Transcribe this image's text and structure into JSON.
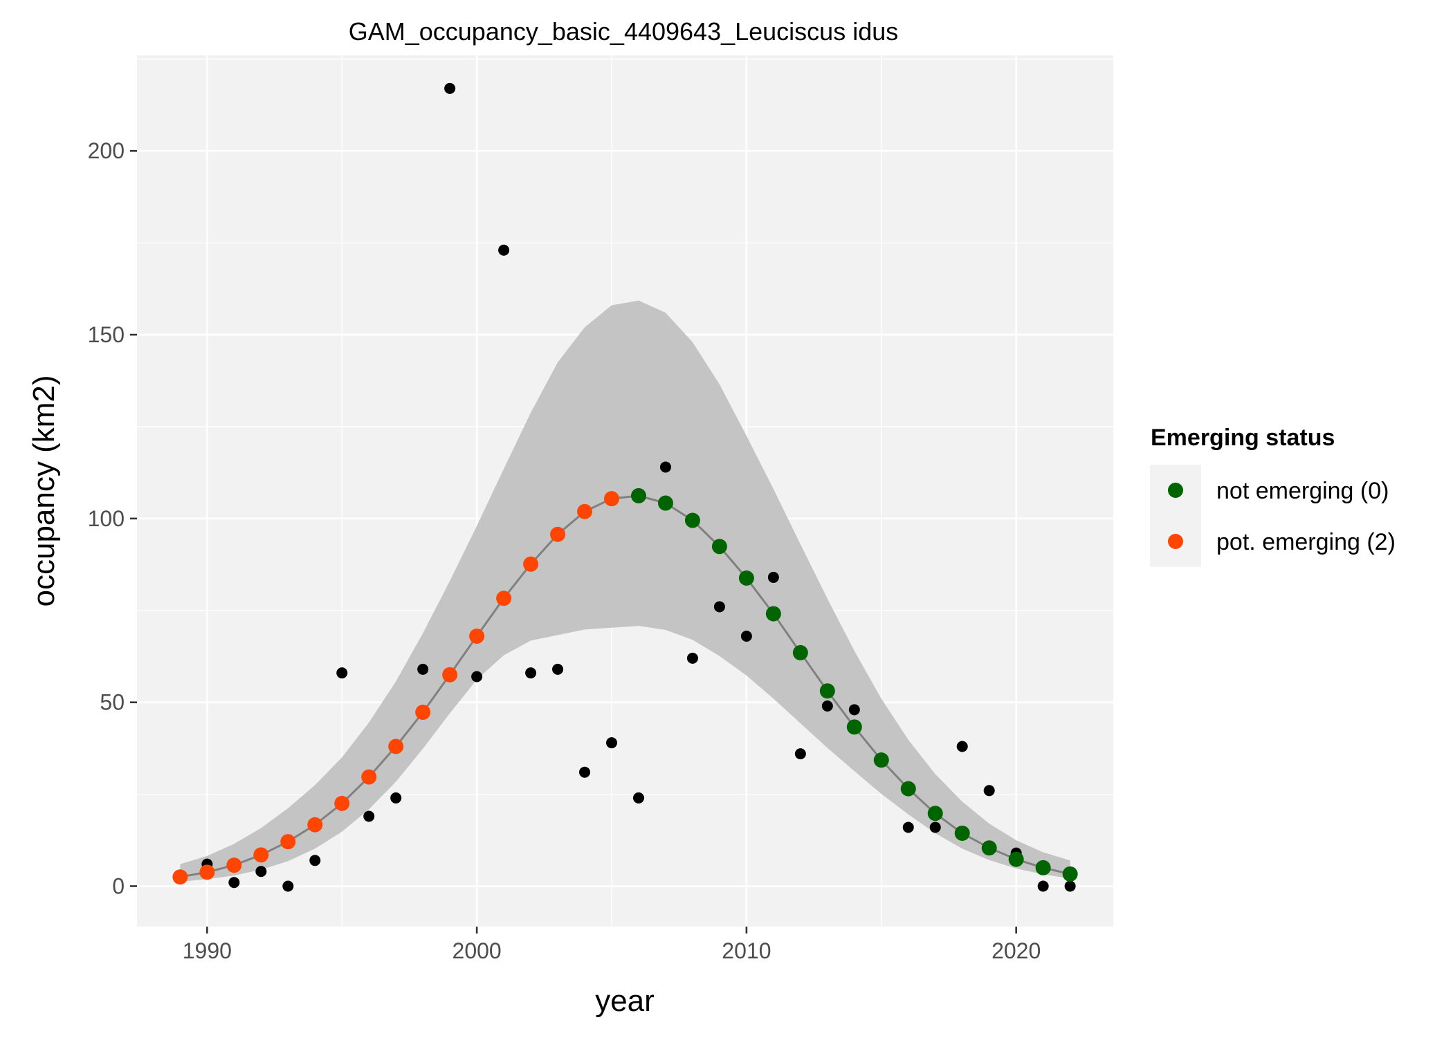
{
  "chart_data": {
    "type": "scatter",
    "title": "GAM_occupancy_basic_4409643_Leuciscus idus",
    "xlabel": "year",
    "ylabel": "occupancy (km2)",
    "xlim": [
      1987.4,
      2023.6
    ],
    "ylim": [
      -11,
      226
    ],
    "x_ticks": [
      1990,
      2000,
      2010,
      2020
    ],
    "y_ticks": [
      0,
      50,
      100,
      150,
      200
    ],
    "grid": true,
    "legend": {
      "title": "Emerging status",
      "position": "right",
      "entries": [
        {
          "label": "not emerging (0)",
          "color": "#006400"
        },
        {
          "label": "pot. emerging (2)",
          "color": "#ff4500"
        }
      ]
    },
    "colors": {
      "panel_background": "#f2f2f2",
      "grid": "#ffffff",
      "observed": "#000000",
      "fit_line": "#808080",
      "ribbon": "#c4c4c4"
    },
    "observed": {
      "x": [
        1990,
        1991,
        1992,
        1993,
        1994,
        1995,
        1996,
        1997,
        1998,
        1999,
        2000,
        2001,
        2002,
        2003,
        2004,
        2005,
        2006,
        2007,
        2008,
        2009,
        2010,
        2011,
        2012,
        2013,
        2014,
        2016,
        2017,
        2018,
        2019,
        2020,
        2021,
        2022
      ],
      "y": [
        6,
        1,
        4,
        0,
        7,
        58,
        19,
        24,
        59,
        217,
        57,
        173,
        58,
        59,
        31,
        39,
        24,
        114,
        62,
        76,
        68,
        84,
        36,
        49,
        48,
        16,
        16,
        38,
        26,
        9,
        0,
        0
      ]
    },
    "fitted": {
      "x": [
        1989,
        1990,
        1991,
        1992,
        1993,
        1994,
        1995,
        1996,
        1997,
        1998,
        1999,
        2000,
        2001,
        2002,
        2003,
        2004,
        2005,
        2006,
        2007,
        2008,
        2009,
        2010,
        2011,
        2012,
        2013,
        2014,
        2015,
        2016,
        2017,
        2018,
        2019,
        2020,
        2021,
        2022
      ],
      "y": [
        2.5,
        3.8,
        5.7,
        8.5,
        12.1,
        16.7,
        22.5,
        29.7,
        38.0,
        47.3,
        57.5,
        68.0,
        78.3,
        87.6,
        95.7,
        101.9,
        105.4,
        106.2,
        104.2,
        99.5,
        92.4,
        83.8,
        74.1,
        63.5,
        53.1,
        43.3,
        34.3,
        26.5,
        19.8,
        14.4,
        10.4,
        7.3,
        5.0,
        3.3
      ],
      "lower": [
        1.2,
        1.9,
        2.9,
        4.5,
        6.8,
        10.2,
        14.8,
        20.9,
        28.4,
        37.4,
        47.0,
        56.2,
        62.8,
        66.8,
        68.3,
        69.8,
        70.3,
        70.8,
        69.7,
        67.0,
        62.6,
        57.3,
        51.0,
        44.3,
        37.6,
        31.3,
        25.1,
        19.5,
        14.4,
        10.2,
        7.1,
        4.8,
        3.2,
        2.1
      ],
      "upper": [
        6.0,
        8.2,
        11.5,
        15.8,
        21.2,
        27.5,
        35.0,
        44.5,
        55.7,
        68.8,
        83.0,
        98.0,
        113.5,
        128.8,
        142.5,
        152.0,
        158.0,
        159.3,
        156.0,
        148.0,
        136.5,
        122.5,
        108.0,
        93.0,
        78.2,
        64.0,
        51.0,
        39.8,
        30.5,
        23.0,
        17.0,
        12.5,
        9.2,
        7.0
      ],
      "status": [
        2,
        2,
        2,
        2,
        2,
        2,
        2,
        2,
        2,
        2,
        2,
        2,
        2,
        2,
        2,
        2,
        2,
        0,
        0,
        0,
        0,
        0,
        0,
        0,
        0,
        0,
        0,
        0,
        0,
        0,
        0,
        0,
        0,
        0
      ]
    }
  }
}
